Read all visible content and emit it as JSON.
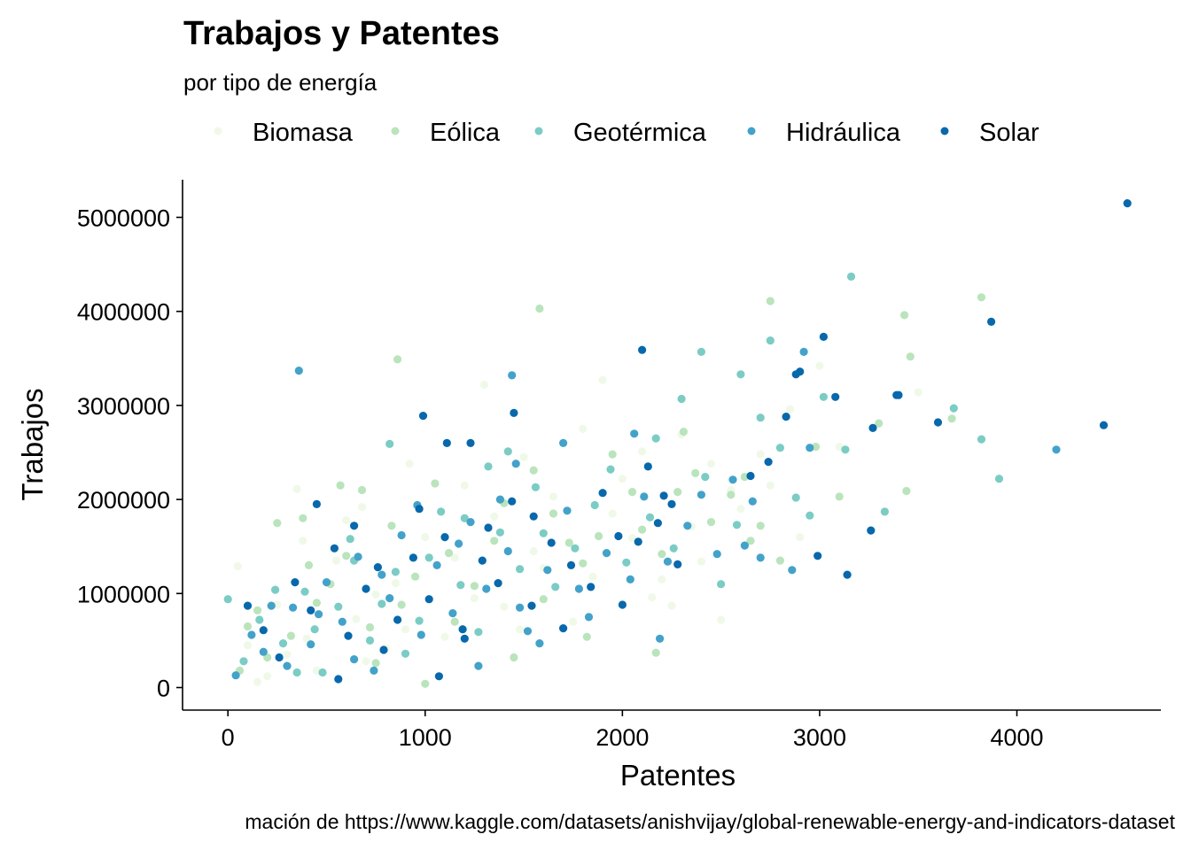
{
  "chart_data": {
    "type": "scatter",
    "title": "Trabajos y Patentes",
    "subtitle": "por tipo de energía",
    "xlabel": "Patentes",
    "ylabel": "Trabajos",
    "caption": "mación de https://www.kaggle.com/datasets/anishvijay/global-renewable-energy-and-indicators-dataset",
    "xlim": [
      -230,
      4730
    ],
    "ylim": [
      -240000,
      5400000
    ],
    "x_ticks": [
      0,
      1000,
      2000,
      3000,
      4000
    ],
    "x_tick_labels": [
      "0",
      "1000",
      "2000",
      "3000",
      "4000"
    ],
    "y_ticks": [
      0,
      1000000,
      2000000,
      3000000,
      4000000,
      5000000
    ],
    "y_tick_labels": [
      "0",
      "1000000",
      "2000000",
      "3000000",
      "4000000",
      "5000000"
    ],
    "grid": false,
    "legend_position": "top",
    "legend": [
      {
        "name": "Biomasa",
        "color": "#f0f9e8"
      },
      {
        "name": "Eólica",
        "color": "#bae4bc"
      },
      {
        "name": "Geotérmica",
        "color": "#7bccc4"
      },
      {
        "name": "Hidráulica",
        "color": "#43a2ca"
      },
      {
        "name": "Solar",
        "color": "#0868ac"
      }
    ],
    "series": [
      {
        "name": "Biomasa",
        "color": "#f0f9e8",
        "points": [
          [
            50,
            1290000
          ],
          [
            350,
            2110000
          ],
          [
            600,
            1780000
          ],
          [
            1300,
            3220000
          ],
          [
            1900,
            3270000
          ],
          [
            2500,
            720000
          ],
          [
            2850,
            2960000
          ],
          [
            3000,
            3420000
          ],
          [
            3500,
            3140000
          ],
          [
            3100,
            2560000
          ],
          [
            2450,
            2380000
          ],
          [
            200,
            120000
          ],
          [
            400,
            520000
          ],
          [
            700,
            280000
          ],
          [
            900,
            620000
          ],
          [
            1150,
            1380000
          ],
          [
            1400,
            860000
          ],
          [
            1650,
            2030000
          ],
          [
            1800,
            2750000
          ],
          [
            2050,
            1590000
          ],
          [
            2200,
            1150000
          ],
          [
            2600,
            1900000
          ],
          [
            2750,
            2150000
          ],
          [
            100,
            450000
          ],
          [
            250,
            880000
          ],
          [
            550,
            1350000
          ],
          [
            800,
            420000
          ],
          [
            1000,
            1600000
          ],
          [
            1250,
            950000
          ],
          [
            1500,
            2450000
          ],
          [
            1750,
            700000
          ],
          [
            2000,
            2220000
          ],
          [
            2300,
            2690000
          ],
          [
            2400,
            1340000
          ],
          [
            2900,
            1600000
          ],
          [
            150,
            60000
          ],
          [
            450,
            180000
          ],
          [
            650,
            730000
          ],
          [
            850,
            1110000
          ],
          [
            1100,
            540000
          ],
          [
            1350,
            1820000
          ],
          [
            1600,
            1270000
          ],
          [
            1950,
            1850000
          ],
          [
            2150,
            960000
          ],
          [
            2350,
            1710000
          ],
          [
            2700,
            2480000
          ],
          [
            300,
            350000
          ],
          [
            750,
            990000
          ],
          [
            1200,
            2150000
          ],
          [
            1550,
            1450000
          ],
          [
            1850,
            1180000
          ],
          [
            2100,
            2510000
          ],
          [
            380,
            1560000
          ],
          [
            680,
            1920000
          ],
          [
            920,
            2380000
          ],
          [
            1480,
            620000
          ],
          [
            2250,
            870000
          ],
          [
            2550,
            2100000
          ]
        ]
      },
      {
        "name": "Eólica",
        "color": "#bae4bc",
        "points": [
          [
            1580,
            4030000
          ],
          [
            860,
            3490000
          ],
          [
            2750,
            4110000
          ],
          [
            3820,
            4150000
          ],
          [
            3430,
            3960000
          ],
          [
            3460,
            3520000
          ],
          [
            3670,
            2860000
          ],
          [
            3440,
            2090000
          ],
          [
            2170,
            370000
          ],
          [
            1820,
            540000
          ],
          [
            250,
            1750000
          ],
          [
            680,
            2100000
          ],
          [
            380,
            1800000
          ],
          [
            2310,
            2720000
          ],
          [
            2370,
            2280000
          ],
          [
            2700,
            1720000
          ],
          [
            3300,
            2810000
          ],
          [
            2980,
            2560000
          ],
          [
            1000,
            40000
          ],
          [
            100,
            650000
          ],
          [
            200,
            320000
          ],
          [
            450,
            900000
          ],
          [
            600,
            1400000
          ],
          [
            750,
            260000
          ],
          [
            950,
            1180000
          ],
          [
            1050,
            2170000
          ],
          [
            1150,
            700000
          ],
          [
            1350,
            1560000
          ],
          [
            1450,
            320000
          ],
          [
            1650,
            1850000
          ],
          [
            1800,
            1320000
          ],
          [
            1950,
            2480000
          ],
          [
            2050,
            2080000
          ],
          [
            2200,
            1420000
          ],
          [
            2450,
            1760000
          ],
          [
            2550,
            2050000
          ],
          [
            2800,
            1350000
          ],
          [
            3100,
            2030000
          ],
          [
            60,
            180000
          ],
          [
            320,
            550000
          ],
          [
            520,
            1100000
          ],
          [
            720,
            640000
          ],
          [
            880,
            880000
          ],
          [
            1250,
            1080000
          ],
          [
            1600,
            940000
          ],
          [
            1730,
            1540000
          ],
          [
            2100,
            1680000
          ],
          [
            2650,
            1560000
          ],
          [
            410,
            1300000
          ],
          [
            1120,
            1430000
          ],
          [
            1550,
            2310000
          ],
          [
            2280,
            2080000
          ],
          [
            830,
            1720000
          ],
          [
            1400,
            1960000
          ],
          [
            1880,
            1610000
          ],
          [
            2620,
            2240000
          ],
          [
            150,
            820000
          ],
          [
            570,
            2150000
          ]
        ]
      },
      {
        "name": "Geotérmica",
        "color": "#7bccc4",
        "points": [
          [
            3160,
            4370000
          ],
          [
            2750,
            3690000
          ],
          [
            3130,
            2530000
          ],
          [
            3820,
            2640000
          ],
          [
            3910,
            2220000
          ],
          [
            3680,
            2970000
          ],
          [
            3330,
            1870000
          ],
          [
            2400,
            3570000
          ],
          [
            2600,
            3330000
          ],
          [
            2700,
            2870000
          ],
          [
            2800,
            2550000
          ],
          [
            2500,
            1100000
          ],
          [
            820,
            2590000
          ],
          [
            1420,
            2510000
          ],
          [
            2300,
            3070000
          ],
          [
            2950,
            1830000
          ],
          [
            3020,
            3090000
          ],
          [
            0,
            940000
          ],
          [
            80,
            280000
          ],
          [
            160,
            720000
          ],
          [
            280,
            470000
          ],
          [
            390,
            1020000
          ],
          [
            480,
            160000
          ],
          [
            560,
            860000
          ],
          [
            640,
            1350000
          ],
          [
            720,
            500000
          ],
          [
            850,
            1230000
          ],
          [
            970,
            710000
          ],
          [
            1080,
            1870000
          ],
          [
            1180,
            1090000
          ],
          [
            1270,
            590000
          ],
          [
            1380,
            1650000
          ],
          [
            1480,
            1260000
          ],
          [
            1560,
            2130000
          ],
          [
            1660,
            1070000
          ],
          [
            1760,
            1480000
          ],
          [
            1860,
            1940000
          ],
          [
            2020,
            1330000
          ],
          [
            2140,
            1810000
          ],
          [
            2260,
            1480000
          ],
          [
            2420,
            2240000
          ],
          [
            2580,
            1730000
          ],
          [
            2880,
            2020000
          ],
          [
            240,
            1040000
          ],
          [
            440,
            620000
          ],
          [
            620,
            1580000
          ],
          [
            780,
            890000
          ],
          [
            1020,
            1380000
          ],
          [
            1320,
            2350000
          ],
          [
            1600,
            1640000
          ],
          [
            1940,
            2320000
          ],
          [
            2170,
            2650000
          ],
          [
            350,
            160000
          ],
          [
            900,
            360000
          ],
          [
            1200,
            1800000
          ]
        ]
      },
      {
        "name": "Hidráulica",
        "color": "#43a2ca",
        "points": [
          [
            360,
            3370000
          ],
          [
            1440,
            3320000
          ],
          [
            4200,
            2530000
          ],
          [
            2700,
            1380000
          ],
          [
            2950,
            2550000
          ],
          [
            2400,
            2050000
          ],
          [
            2620,
            1510000
          ],
          [
            2860,
            1250000
          ],
          [
            2920,
            3570000
          ],
          [
            1700,
            2600000
          ],
          [
            1460,
            2380000
          ],
          [
            40,
            130000
          ],
          [
            120,
            560000
          ],
          [
            220,
            870000
          ],
          [
            300,
            230000
          ],
          [
            420,
            460000
          ],
          [
            500,
            1120000
          ],
          [
            580,
            700000
          ],
          [
            660,
            1390000
          ],
          [
            740,
            180000
          ],
          [
            820,
            950000
          ],
          [
            880,
            1620000
          ],
          [
            980,
            560000
          ],
          [
            1060,
            1300000
          ],
          [
            1140,
            790000
          ],
          [
            1230,
            1760000
          ],
          [
            1310,
            1050000
          ],
          [
            1420,
            1450000
          ],
          [
            1520,
            600000
          ],
          [
            1620,
            1250000
          ],
          [
            1720,
            1880000
          ],
          [
            1830,
            750000
          ],
          [
            1920,
            1430000
          ],
          [
            2040,
            1150000
          ],
          [
            2110,
            2030000
          ],
          [
            2230,
            1340000
          ],
          [
            2330,
            1720000
          ],
          [
            2480,
            1420000
          ],
          [
            2560,
            2210000
          ],
          [
            2660,
            1980000
          ],
          [
            180,
            380000
          ],
          [
            460,
            780000
          ],
          [
            640,
            300000
          ],
          [
            960,
            1940000
          ],
          [
            1170,
            1530000
          ],
          [
            1480,
            850000
          ],
          [
            1780,
            1050000
          ],
          [
            2060,
            2700000
          ],
          [
            2190,
            520000
          ],
          [
            1270,
            230000
          ],
          [
            1580,
            470000
          ],
          [
            330,
            850000
          ],
          [
            780,
            1200000
          ],
          [
            1380,
            2000000
          ]
        ]
      },
      {
        "name": "Solar",
        "color": "#0868ac",
        "points": [
          [
            4560,
            5150000
          ],
          [
            3870,
            3890000
          ],
          [
            4440,
            2790000
          ],
          [
            3600,
            2820000
          ],
          [
            3400,
            3110000
          ],
          [
            3270,
            2760000
          ],
          [
            3260,
            1670000
          ],
          [
            3140,
            1200000
          ],
          [
            3020,
            3730000
          ],
          [
            3080,
            3090000
          ],
          [
            2900,
            3360000
          ],
          [
            2990,
            1400000
          ],
          [
            2100,
            3590000
          ],
          [
            990,
            2890000
          ],
          [
            1450,
            2920000
          ],
          [
            1110,
            2600000
          ],
          [
            1230,
            2600000
          ],
          [
            2130,
            2350000
          ],
          [
            2210,
            2040000
          ],
          [
            100,
            870000
          ],
          [
            180,
            610000
          ],
          [
            260,
            320000
          ],
          [
            340,
            1120000
          ],
          [
            420,
            820000
          ],
          [
            540,
            1480000
          ],
          [
            610,
            550000
          ],
          [
            700,
            1050000
          ],
          [
            760,
            1280000
          ],
          [
            860,
            720000
          ],
          [
            940,
            1380000
          ],
          [
            1020,
            940000
          ],
          [
            1100,
            1600000
          ],
          [
            1190,
            620000
          ],
          [
            1290,
            1350000
          ],
          [
            1370,
            1110000
          ],
          [
            1440,
            1980000
          ],
          [
            1540,
            870000
          ],
          [
            1640,
            1540000
          ],
          [
            1740,
            1300000
          ],
          [
            1840,
            1070000
          ],
          [
            1900,
            2070000
          ],
          [
            2000,
            880000
          ],
          [
            2080,
            1550000
          ],
          [
            2180,
            1750000
          ],
          [
            2280,
            1310000
          ],
          [
            2650,
            2250000
          ],
          [
            2740,
            2400000
          ],
          [
            2830,
            2880000
          ],
          [
            970,
            1900000
          ],
          [
            1550,
            1820000
          ],
          [
            1320,
            1700000
          ],
          [
            560,
            90000
          ],
          [
            790,
            400000
          ],
          [
            1070,
            120000
          ],
          [
            1200,
            520000
          ],
          [
            1700,
            630000
          ],
          [
            1980,
            1610000
          ],
          [
            2250,
            1950000
          ],
          [
            3390,
            3110000
          ],
          [
            450,
            1950000
          ],
          [
            2880,
            3330000
          ],
          [
            640,
            1720000
          ]
        ]
      }
    ]
  }
}
